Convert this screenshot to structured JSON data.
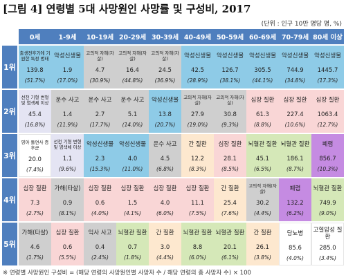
{
  "title": "[그림 4] 연령별 5대 사망원인 사망률 및 구성비, 2017",
  "unit_note": "(단위 : 인구 10만 명당 명, %)",
  "footnote": "※ 연령별 사망원인 구성비 = (해당 연령의 사망원인별 사망자 수 / 해당 연령의 총 사망자 수) × 100",
  "colors": {
    "header": "#4f7fbe",
    "perinatal": "#8ecbe7",
    "external": "#cfcfcf",
    "cancer": "#fde8cf",
    "heart": "#f9d6d6",
    "cerebro": "#d5e8b8",
    "congenital": "#e4e4f3",
    "pneumonia": "#c58be2",
    "diabetes": "#ffffff"
  },
  "age_groups": [
    "0세",
    "1-9세",
    "10-19세",
    "20-29세",
    "30-39세",
    "40-49세",
    "50-59세",
    "60-69세",
    "70-79세",
    "80세 이상"
  ],
  "ranks": [
    "1위",
    "2위",
    "3위",
    "4위",
    "5위"
  ],
  "rows": [
    [
      {
        "cause": "출생전후기에 기원한 특정 병태",
        "rate": "139.8",
        "pct": "(51.7%)",
        "cat": "perinatal"
      },
      {
        "cause": "악성신생물",
        "rate": "1.9",
        "pct": "(17.0%)",
        "cat": "perinatal"
      },
      {
        "cause": "고의적 자해(자살)",
        "rate": "4.7",
        "pct": "(30.9%)",
        "cat": "external"
      },
      {
        "cause": "고의적 자해(자살)",
        "rate": "16.4",
        "pct": "(44.8%)",
        "cat": "external"
      },
      {
        "cause": "고의적 자해(자살)",
        "rate": "24.5",
        "pct": "(36.9%)",
        "cat": "external"
      },
      {
        "cause": "악성신생물",
        "rate": "42.5",
        "pct": "(28.9%)",
        "cat": "perinatal"
      },
      {
        "cause": "악성신생물",
        "rate": "126.7",
        "pct": "(38.1%)",
        "cat": "perinatal"
      },
      {
        "cause": "악성신생물",
        "rate": "305.5",
        "pct": "(44.1%)",
        "cat": "perinatal"
      },
      {
        "cause": "악성신생물",
        "rate": "744.9",
        "pct": "(34.8%)",
        "cat": "perinatal"
      },
      {
        "cause": "악성신생물",
        "rate": "1445.7",
        "pct": "(17.3%)",
        "cat": "perinatal"
      }
    ],
    [
      {
        "cause": "선천 기형 변형 및 염색체 이상",
        "rate": "45.4",
        "pct": "(16.8%)",
        "cat": "congenital"
      },
      {
        "cause": "운수 사고",
        "rate": "1.4",
        "pct": "(11.9%)",
        "cat": "external"
      },
      {
        "cause": "운수 사고",
        "rate": "2.7",
        "pct": "(17.7%)",
        "cat": "external"
      },
      {
        "cause": "운수 사고",
        "rate": "5.1",
        "pct": "(14.0%)",
        "cat": "external"
      },
      {
        "cause": "악성신생물",
        "rate": "13.8",
        "pct": "(20.7%)",
        "cat": "perinatal"
      },
      {
        "cause": "고의적 자해(자살)",
        "rate": "27.9",
        "pct": "(19.0%)",
        "cat": "external"
      },
      {
        "cause": "고의적 자해(자살)",
        "rate": "30.8",
        "pct": "(9.3%)",
        "cat": "external"
      },
      {
        "cause": "심장 질환",
        "rate": "61.3",
        "pct": "(8.8%)",
        "cat": "heart"
      },
      {
        "cause": "심장 질환",
        "rate": "227.4",
        "pct": "(10.6%)",
        "cat": "heart"
      },
      {
        "cause": "심장 질환",
        "rate": "1063.4",
        "pct": "(12.7%)",
        "cat": "heart"
      }
    ],
    [
      {
        "cause": "영아 돌연사 증후군",
        "rate": "20.0",
        "pct": "(7.4%)",
        "cat": "diabetes"
      },
      {
        "cause": "선천 기형 변형 및 염색체 이상",
        "rate": "1.1",
        "pct": "(9.6%)",
        "cat": "congenital"
      },
      {
        "cause": "악성신생물",
        "rate": "2.3",
        "pct": "(15.3%)",
        "cat": "perinatal"
      },
      {
        "cause": "악성신생물",
        "rate": "4.0",
        "pct": "(11.0%)",
        "cat": "perinatal"
      },
      {
        "cause": "운수 사고",
        "rate": "4.5",
        "pct": "(6.8%)",
        "cat": "external"
      },
      {
        "cause": "간 질환",
        "rate": "12.2",
        "pct": "(8.3%)",
        "cat": "cancer"
      },
      {
        "cause": "심장 질환",
        "rate": "28.1",
        "pct": "(8.5%)",
        "cat": "heart"
      },
      {
        "cause": "뇌혈관 질환",
        "rate": "45.1",
        "pct": "(6.5%)",
        "cat": "cerebro"
      },
      {
        "cause": "뇌혈관 질환",
        "rate": "186.1",
        "pct": "(8.7%)",
        "cat": "cerebro"
      },
      {
        "cause": "폐렴",
        "rate": "856.7",
        "pct": "(10.3%)",
        "cat": "pneumonia"
      }
    ],
    [
      {
        "cause": "심장 질환",
        "rate": "7.3",
        "pct": "(2.7%)",
        "cat": "heart"
      },
      {
        "cause": "가해(타살)",
        "rate": "0.9",
        "pct": "(8.1%)",
        "cat": "external"
      },
      {
        "cause": "심장 질환",
        "rate": "0.6",
        "pct": "(4.0%)",
        "cat": "heart"
      },
      {
        "cause": "심장 질환",
        "rate": "1.5",
        "pct": "(4.1%)",
        "cat": "heart"
      },
      {
        "cause": "심장 질환",
        "rate": "4.0",
        "pct": "(6.0%)",
        "cat": "heart"
      },
      {
        "cause": "심장 질환",
        "rate": "11.1",
        "pct": "(7.5%)",
        "cat": "heart"
      },
      {
        "cause": "간 질환",
        "rate": "25.4",
        "pct": "(7.6%)",
        "cat": "cancer"
      },
      {
        "cause": "고의적 자해(자살)",
        "rate": "30.2",
        "pct": "(4.4%)",
        "cat": "external"
      },
      {
        "cause": "폐렴",
        "rate": "132.2",
        "pct": "(6.2%)",
        "cat": "pneumonia"
      },
      {
        "cause": "뇌혈관 질환",
        "rate": "749.9",
        "pct": "(9.0%)",
        "cat": "cerebro"
      }
    ],
    [
      {
        "cause": "가해(타살)",
        "rate": "4.6",
        "pct": "(1.7%)",
        "cat": "external"
      },
      {
        "cause": "심장 질환",
        "rate": "0.6",
        "pct": "(5.5%)",
        "cat": "heart"
      },
      {
        "cause": "익사 사고",
        "rate": "0.4",
        "pct": "(2.4%)",
        "cat": "external"
      },
      {
        "cause": "뇌혈관 질환",
        "rate": "0.7",
        "pct": "(1.8%)",
        "cat": "cerebro"
      },
      {
        "cause": "간 질환",
        "rate": "3.0",
        "pct": "(4.4%)",
        "cat": "cancer"
      },
      {
        "cause": "뇌혈관 질환",
        "rate": "8.8",
        "pct": "(6.0%)",
        "cat": "cerebro"
      },
      {
        "cause": "뇌혈관 질환",
        "rate": "20.1",
        "pct": "(6.1%)",
        "cat": "cerebro"
      },
      {
        "cause": "간 질환",
        "rate": "26.1",
        "pct": "(3.8%)",
        "cat": "cancer"
      },
      {
        "cause": "당뇨병",
        "rate": "85.6",
        "pct": "(4.0%)",
        "cat": "diabetes"
      },
      {
        "cause": "고혈압성 질환",
        "rate": "285.0",
        "pct": "(3.4%)",
        "cat": "diabetes"
      }
    ]
  ]
}
